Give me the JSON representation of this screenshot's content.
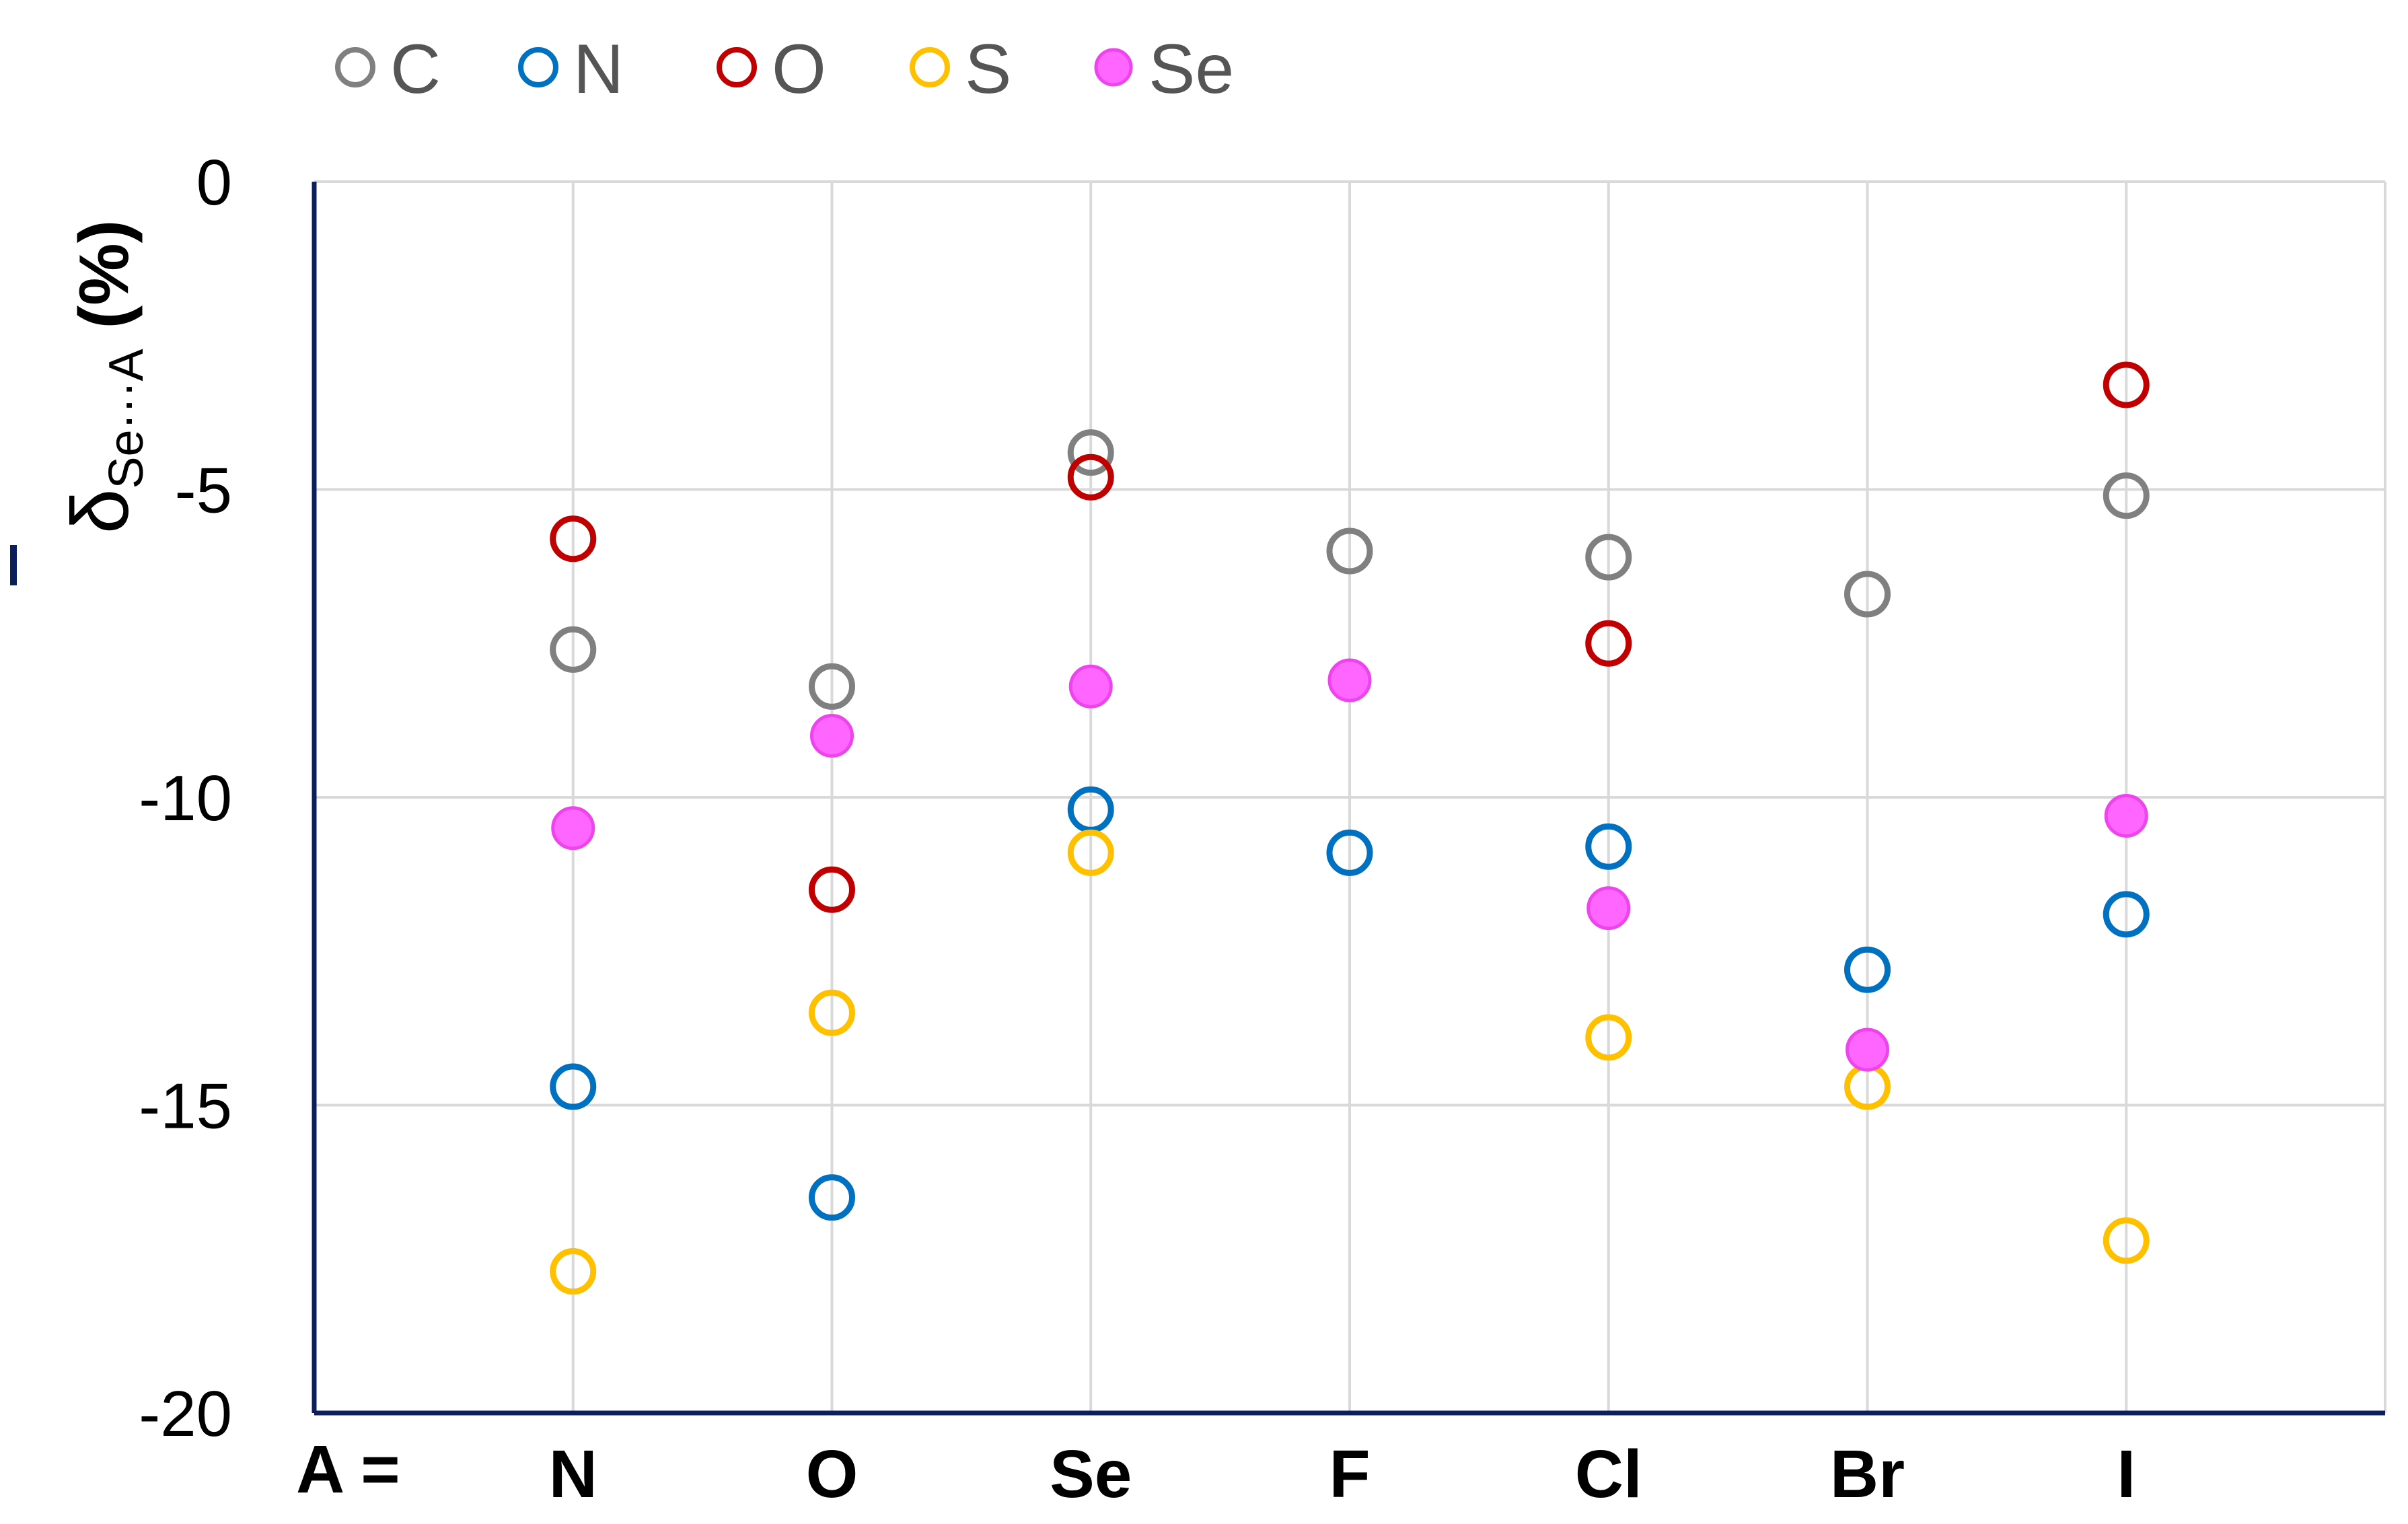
{
  "chart_data": {
    "type": "scatter",
    "title": "",
    "x_prefix_label": "A =",
    "categories": [
      "N",
      "O",
      "Se",
      "F",
      "Cl",
      "Br",
      "I"
    ],
    "ylabel": {
      "symbol": "δ",
      "subscript": "Se···A",
      "unit": "(%)"
    },
    "ylim": [
      -20,
      0
    ],
    "yticks": [
      0,
      -5,
      -10,
      -15,
      -20
    ],
    "grid": true,
    "legend_position": "top-left",
    "series": [
      {
        "name": "C",
        "color": "#808080",
        "filled": false,
        "values": [
          -7.6,
          -8.2,
          -4.4,
          -6.0,
          -6.1,
          -6.7,
          -5.1
        ]
      },
      {
        "name": "N",
        "color": "#0070C0",
        "filled": false,
        "values": [
          -14.7,
          -16.5,
          -10.2,
          -10.9,
          -10.8,
          -12.8,
          -11.9
        ]
      },
      {
        "name": "O",
        "color": "#C00000",
        "filled": false,
        "values": [
          -5.8,
          -11.5,
          -4.8,
          null,
          -7.5,
          null,
          -3.3
        ]
      },
      {
        "name": "S",
        "color": "#FFC000",
        "filled": false,
        "values": [
          -17.7,
          -13.5,
          -10.9,
          null,
          -13.9,
          -14.7,
          -17.2
        ]
      },
      {
        "name": "Se",
        "color": "#FF66FF",
        "filled": true,
        "values": [
          -10.5,
          -9.0,
          -8.2,
          -8.1,
          -11.8,
          -14.1,
          -10.3
        ]
      }
    ]
  },
  "colors": {
    "axis": "#0B1F5C",
    "grid": "#D9D9D9"
  }
}
